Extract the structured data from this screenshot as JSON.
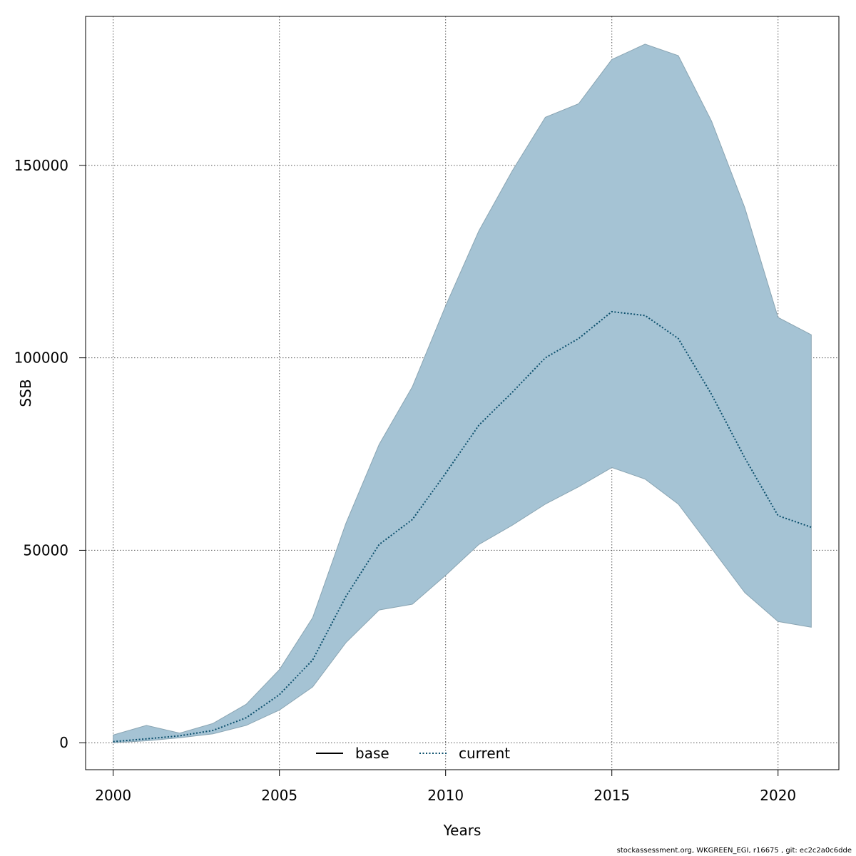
{
  "chart_data": {
    "type": "area",
    "xlabel": "Years",
    "ylabel": "SSB",
    "xlim": [
      1999.17,
      2021.83
    ],
    "ylim": [
      -7000,
      188700
    ],
    "x_ticks": [
      2000,
      2005,
      2010,
      2015,
      2020
    ],
    "y_ticks": [
      0,
      50000,
      100000,
      150000
    ],
    "grid": true,
    "legend_position": "bottom-center",
    "legend": [
      {
        "label": "base",
        "line_style": "solid",
        "color": "#000000"
      },
      {
        "label": "current",
        "line_style": "dotted",
        "color": "#0b4f6c"
      }
    ],
    "x": [
      2000,
      2001,
      2002,
      2003,
      2004,
      2005,
      2006,
      2007,
      2008,
      2009,
      2010,
      2011,
      2012,
      2013,
      2014,
      2015,
      2016,
      2017,
      2018,
      2019,
      2020,
      2021
    ],
    "series": [
      {
        "name": "current",
        "style": "dotted",
        "color": "#0b4f6c",
        "values": [
          300,
          1000,
          1800,
          3200,
          6500,
          12500,
          21500,
          38000,
          51500,
          58000,
          70000,
          82500,
          91000,
          100000,
          105000,
          112000,
          111000,
          105000,
          90500,
          74000,
          59000,
          56000
        ]
      },
      {
        "name": "current-upper",
        "style": "band-upper",
        "values": [
          2000,
          4500,
          2500,
          5000,
          10000,
          19000,
          32500,
          57000,
          77500,
          92500,
          113500,
          133000,
          148500,
          162500,
          166000,
          177500,
          181500,
          178500,
          161500,
          139000,
          110500,
          106000
        ]
      },
      {
        "name": "current-lower",
        "style": "band-lower",
        "values": [
          0,
          500,
          1300,
          2300,
          4500,
          8500,
          14500,
          26000,
          34500,
          36000,
          43500,
          51500,
          56500,
          62000,
          66500,
          71500,
          68500,
          62000,
          50500,
          39000,
          31500,
          30000
        ]
      }
    ],
    "band_fill": "#a5c3d4",
    "band_edge": "#8aa5b3"
  },
  "footer": "stockassessment.org, WKGREEN_EGI, r16675 , git: ec2c2a0c6dde"
}
